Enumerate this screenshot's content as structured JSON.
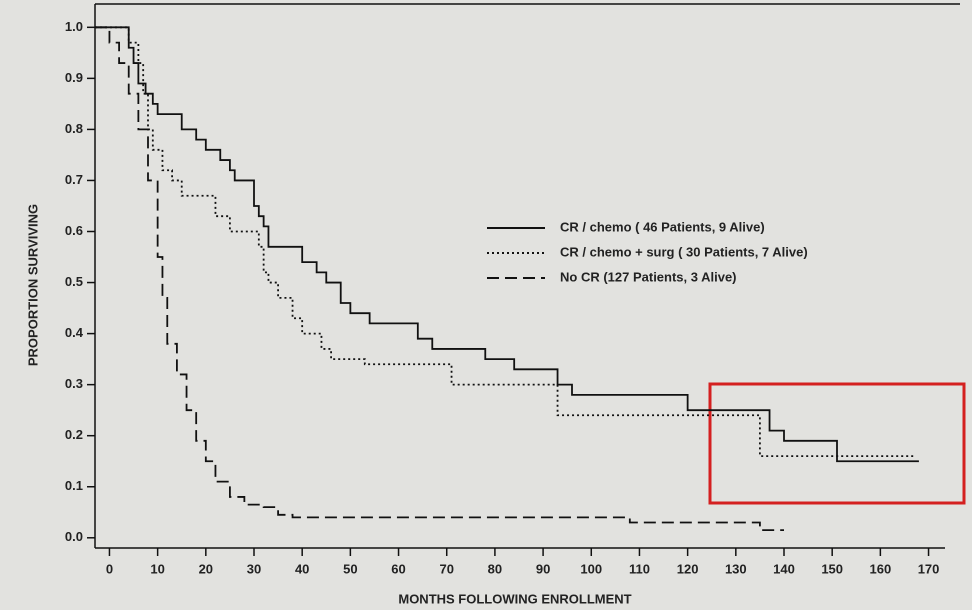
{
  "chart_data": {
    "type": "step",
    "xlabel": "MONTHS FOLLOWING ENROLLMENT",
    "ylabel": "PROPORTION SURVIVING",
    "xlim": [
      -3,
      173
    ],
    "ylim": [
      -0.02,
      1.03
    ],
    "xticks": [
      0,
      10,
      20,
      30,
      40,
      50,
      60,
      70,
      80,
      90,
      100,
      110,
      120,
      130,
      140,
      150,
      160,
      170
    ],
    "yticks": [
      {
        "value": 0,
        "label": "0.0"
      },
      0.1,
      0.2,
      0.3,
      0.4,
      0.5,
      0.6,
      0.7,
      0.8,
      0.9,
      {
        "value": 1,
        "label": "1.0"
      }
    ],
    "legend": "upper right",
    "series": [
      {
        "name": "CR / chemo ( 46 Patients, 9 Alive)",
        "color": "#111111",
        "dash": "solid",
        "x": [
          -3,
          4,
          5,
          6,
          7.5,
          9,
          10,
          15,
          18,
          20,
          23,
          25,
          26,
          30,
          31,
          32,
          33,
          40,
          43,
          45,
          48,
          50,
          54,
          64,
          67,
          78,
          84,
          93,
          96,
          120,
          137,
          140,
          151,
          168
        ],
        "values": [
          1.0,
          0.96,
          0.93,
          0.89,
          0.87,
          0.85,
          0.83,
          0.8,
          0.78,
          0.76,
          0.74,
          0.72,
          0.7,
          0.65,
          0.63,
          0.61,
          0.57,
          0.54,
          0.52,
          0.5,
          0.46,
          0.44,
          0.42,
          0.39,
          0.37,
          0.35,
          0.33,
          0.3,
          0.28,
          0.25,
          0.21,
          0.19,
          0.15,
          0.15
        ]
      },
      {
        "name": "CR / chemo + surg ( 30 Patients, 7 Alive)",
        "color": "#111111",
        "dash": "dotted",
        "x": [
          -3,
          4,
          6,
          7,
          8,
          9,
          11,
          13,
          15,
          22,
          25,
          31,
          32,
          33,
          35,
          38,
          40,
          44,
          46,
          53,
          71,
          93,
          135,
          167
        ],
        "values": [
          1.0,
          0.97,
          0.93,
          0.87,
          0.8,
          0.76,
          0.72,
          0.7,
          0.67,
          0.63,
          0.6,
          0.57,
          0.52,
          0.5,
          0.47,
          0.43,
          0.4,
          0.37,
          0.35,
          0.34,
          0.3,
          0.24,
          0.16,
          0.16
        ]
      },
      {
        "name": "No CR (127 Patients, 3 Alive)",
        "color": "#111111",
        "dash": "dashed",
        "x": [
          -3,
          0,
          2,
          4,
          6,
          8,
          10,
          11,
          12,
          14,
          16,
          18,
          20,
          22,
          25,
          28,
          32,
          35,
          38,
          108,
          135,
          140
        ],
        "values": [
          1.0,
          0.97,
          0.93,
          0.87,
          0.8,
          0.7,
          0.55,
          0.47,
          0.38,
          0.32,
          0.25,
          0.19,
          0.15,
          0.11,
          0.08,
          0.065,
          0.06,
          0.045,
          0.04,
          0.03,
          0.015,
          0.015
        ]
      }
    ]
  }
}
